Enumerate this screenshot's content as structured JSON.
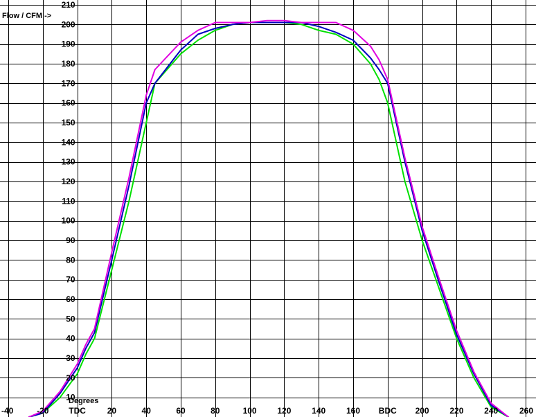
{
  "chart_data": {
    "type": "line",
    "ylabel": "Flow / CFM ->",
    "xlabel": "Degrees",
    "xlim": [
      -40,
      260
    ],
    "ylim": [
      0,
      210
    ],
    "x_step": 20,
    "y_step": 10,
    "grid": true,
    "x_ticks": [
      {
        "value": -40,
        "label": "-40"
      },
      {
        "value": -20,
        "label": "-20"
      },
      {
        "value": 0,
        "label": "TDC"
      },
      {
        "value": 20,
        "label": "20"
      },
      {
        "value": 40,
        "label": "40"
      },
      {
        "value": 60,
        "label": "60"
      },
      {
        "value": 80,
        "label": "80"
      },
      {
        "value": 100,
        "label": "100"
      },
      {
        "value": 120,
        "label": "120"
      },
      {
        "value": 140,
        "label": "140"
      },
      {
        "value": 160,
        "label": "160"
      },
      {
        "value": 180,
        "label": "BDC"
      },
      {
        "value": 200,
        "label": "200"
      },
      {
        "value": 220,
        "label": "220"
      },
      {
        "value": 240,
        "label": "240"
      },
      {
        "value": 260,
        "label": "260"
      }
    ],
    "y_ticks": [
      "10",
      "20",
      "30",
      "40",
      "50",
      "60",
      "70",
      "80",
      "90",
      "100",
      "110",
      "120",
      "130",
      "140",
      "150",
      "160",
      "170",
      "180",
      "190",
      "200",
      "210"
    ],
    "series": [
      {
        "color": "#00e000",
        "x": [
          -28,
          -20,
          -10,
          0,
          5,
          10,
          20,
          30,
          40,
          45,
          60,
          70,
          80,
          90,
          100,
          110,
          120,
          130,
          140,
          150,
          160,
          170,
          175,
          180,
          190,
          200,
          210,
          220,
          230,
          240,
          250
        ],
        "y": [
          0,
          2,
          10,
          22,
          32,
          40,
          75,
          110,
          150,
          170,
          185,
          192,
          197,
          200,
          201,
          201,
          201,
          200,
          197,
          195,
          190,
          180,
          172,
          160,
          120,
          90,
          65,
          40,
          20,
          5,
          0
        ]
      },
      {
        "color": "#0000c0",
        "x": [
          -28,
          -20,
          -10,
          0,
          5,
          10,
          20,
          30,
          40,
          45,
          60,
          70,
          80,
          90,
          100,
          110,
          120,
          130,
          140,
          150,
          160,
          170,
          175,
          180,
          190,
          200,
          210,
          220,
          230,
          240,
          250
        ],
        "y": [
          0,
          2,
          12,
          25,
          35,
          43,
          80,
          118,
          160,
          170,
          187,
          195,
          198,
          200,
          201,
          201,
          201,
          201,
          199,
          196,
          192,
          183,
          177,
          170,
          130,
          95,
          68,
          42,
          22,
          6,
          0
        ]
      },
      {
        "color": "#e000e0",
        "x": [
          -28,
          -20,
          -10,
          0,
          5,
          10,
          20,
          30,
          40,
          45,
          60,
          70,
          80,
          90,
          100,
          110,
          120,
          130,
          140,
          150,
          160,
          170,
          175,
          180,
          190,
          200,
          210,
          220,
          230,
          240,
          250
        ],
        "y": [
          0,
          3,
          13,
          27,
          37,
          45,
          84,
          122,
          164,
          177,
          191,
          197,
          201,
          201,
          201,
          202,
          202,
          201,
          201,
          201,
          197,
          189,
          182,
          172,
          132,
          97,
          70,
          44,
          23,
          7,
          0
        ]
      }
    ]
  }
}
